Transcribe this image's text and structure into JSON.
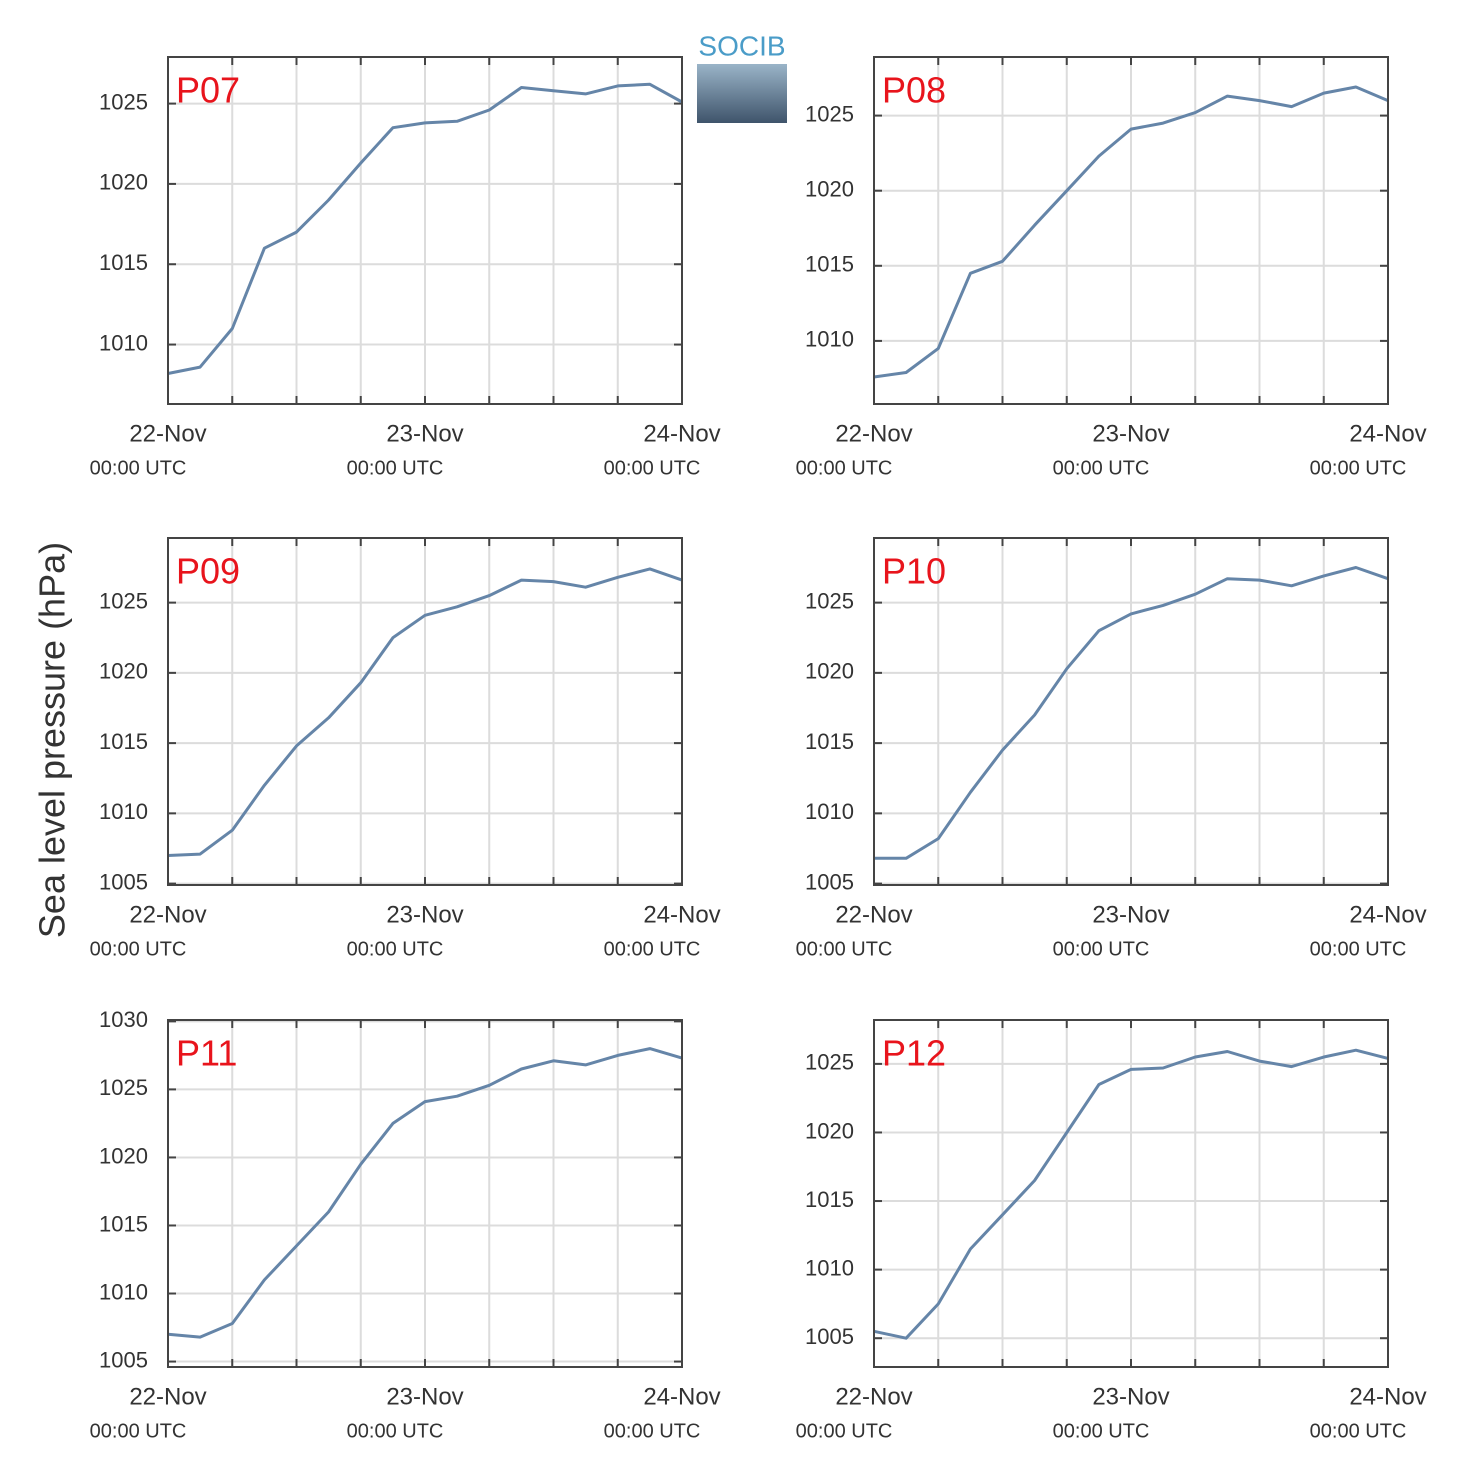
{
  "logo": "SOCIB",
  "ylabel": "Sea level pressure (hPa)",
  "chart_data": [
    {
      "type": "line",
      "title": "P07",
      "color": "#6585a8",
      "grid": true,
      "x": [
        0,
        3,
        6,
        9,
        12,
        15,
        18,
        21,
        24,
        27,
        30,
        33,
        36,
        39,
        42,
        45,
        48
      ],
      "values": [
        1008.2,
        1008.6,
        1011,
        1016,
        1017,
        1019,
        1021.3,
        1023.5,
        1023.8,
        1023.9,
        1024.6,
        1026,
        1025.8,
        1025.6,
        1026.1,
        1026.2,
        1025.1
      ],
      "xlim": [
        0,
        48
      ],
      "xticks": [
        {
          "value": 0,
          "label": "22-Nov",
          "sublabel": "00:00 UTC"
        },
        {
          "value": 6,
          "label": null
        },
        {
          "value": 12,
          "label": null
        },
        {
          "value": 18,
          "label": null
        },
        {
          "value": 24,
          "label": "23-Nov",
          "sublabel": "00:00 UTC"
        },
        {
          "value": 30,
          "label": null
        },
        {
          "value": 36,
          "label": null
        },
        {
          "value": 42,
          "label": null
        },
        {
          "value": 48,
          "label": "24-Nov",
          "sublabel": "00:00 UTC"
        }
      ],
      "ylim": [
        1006.3,
        1027.9
      ],
      "yticks": [
        1010,
        1015,
        1020,
        1025
      ]
    },
    {
      "type": "line",
      "title": "P08",
      "color": "#6585a8",
      "grid": true,
      "x": [
        0,
        3,
        6,
        9,
        12,
        15,
        18,
        21,
        24,
        27,
        30,
        33,
        36,
        39,
        42,
        45,
        48
      ],
      "values": [
        1007.6,
        1007.9,
        1009.5,
        1014.5,
        1015.3,
        1017.7,
        1020,
        1022.3,
        1024.1,
        1024.5,
        1025.2,
        1026.3,
        1026,
        1025.6,
        1026.5,
        1026.9,
        1026
      ],
      "xlim": [
        0,
        48
      ],
      "xticks": [
        {
          "value": 0,
          "label": "22-Nov",
          "sublabel": "00:00 UTC"
        },
        {
          "value": 6,
          "label": null
        },
        {
          "value": 12,
          "label": null
        },
        {
          "value": 18,
          "label": null
        },
        {
          "value": 24,
          "label": "23-Nov",
          "sublabel": "00:00 UTC"
        },
        {
          "value": 30,
          "label": null
        },
        {
          "value": 36,
          "label": null
        },
        {
          "value": 42,
          "label": null
        },
        {
          "value": 48,
          "label": "24-Nov",
          "sublabel": "00:00 UTC"
        }
      ],
      "ylim": [
        1005.8,
        1028.9
      ],
      "yticks": [
        1010,
        1015,
        1020,
        1025
      ]
    },
    {
      "type": "line",
      "title": "P09",
      "color": "#6585a8",
      "grid": true,
      "x": [
        0,
        3,
        6,
        9,
        12,
        15,
        18,
        21,
        24,
        27,
        30,
        33,
        36,
        39,
        42,
        45,
        48
      ],
      "values": [
        1007,
        1007.1,
        1008.8,
        1012,
        1014.8,
        1016.8,
        1019.3,
        1022.5,
        1024.1,
        1024.7,
        1025.5,
        1026.6,
        1026.5,
        1026.1,
        1026.8,
        1027.4,
        1026.6
      ],
      "xlim": [
        0,
        48
      ],
      "xticks": [
        {
          "value": 0,
          "label": "22-Nov",
          "sublabel": "00:00 UTC"
        },
        {
          "value": 6,
          "label": null
        },
        {
          "value": 12,
          "label": null
        },
        {
          "value": 18,
          "label": null
        },
        {
          "value": 24,
          "label": "23-Nov",
          "sublabel": "00:00 UTC"
        },
        {
          "value": 30,
          "label": null
        },
        {
          "value": 36,
          "label": null
        },
        {
          "value": 42,
          "label": null
        },
        {
          "value": 48,
          "label": "24-Nov",
          "sublabel": "00:00 UTC"
        }
      ],
      "ylim": [
        1004.9,
        1029.6
      ],
      "yticks": [
        1005,
        1010,
        1015,
        1020,
        1025
      ]
    },
    {
      "type": "line",
      "title": "P10",
      "color": "#6585a8",
      "grid": true,
      "x": [
        0,
        3,
        6,
        9,
        12,
        15,
        18,
        21,
        24,
        27,
        30,
        33,
        36,
        39,
        42,
        45,
        48
      ],
      "values": [
        1006.8,
        1006.8,
        1008.2,
        1011.5,
        1014.5,
        1017,
        1020.3,
        1023,
        1024.2,
        1024.8,
        1025.6,
        1026.7,
        1026.6,
        1026.2,
        1026.9,
        1027.5,
        1026.7
      ],
      "xlim": [
        0,
        48
      ],
      "xticks": [
        {
          "value": 0,
          "label": "22-Nov",
          "sublabel": "00:00 UTC"
        },
        {
          "value": 6,
          "label": null
        },
        {
          "value": 12,
          "label": null
        },
        {
          "value": 18,
          "label": null
        },
        {
          "value": 24,
          "label": "23-Nov",
          "sublabel": "00:00 UTC"
        },
        {
          "value": 30,
          "label": null
        },
        {
          "value": 36,
          "label": null
        },
        {
          "value": 42,
          "label": null
        },
        {
          "value": 48,
          "label": "24-Nov",
          "sublabel": "00:00 UTC"
        }
      ],
      "ylim": [
        1004.9,
        1029.6
      ],
      "yticks": [
        1005,
        1010,
        1015,
        1020,
        1025
      ]
    },
    {
      "type": "line",
      "title": "P11",
      "color": "#6585a8",
      "grid": true,
      "x": [
        0,
        3,
        6,
        9,
        12,
        15,
        18,
        21,
        24,
        27,
        30,
        33,
        36,
        39,
        42,
        45,
        48
      ],
      "values": [
        1007,
        1006.8,
        1007.8,
        1011,
        1013.5,
        1016,
        1019.5,
        1022.5,
        1024.1,
        1024.5,
        1025.3,
        1026.5,
        1027.1,
        1026.8,
        1027.5,
        1028,
        1027.3
      ],
      "xlim": [
        0,
        48
      ],
      "xticks": [
        {
          "value": 0,
          "label": "22-Nov",
          "sublabel": "00:00 UTC"
        },
        {
          "value": 6,
          "label": null
        },
        {
          "value": 12,
          "label": null
        },
        {
          "value": 18,
          "label": null
        },
        {
          "value": 24,
          "label": "23-Nov",
          "sublabel": "00:00 UTC"
        },
        {
          "value": 30,
          "label": null
        },
        {
          "value": 36,
          "label": null
        },
        {
          "value": 42,
          "label": null
        },
        {
          "value": 48,
          "label": "24-Nov",
          "sublabel": "00:00 UTC"
        }
      ],
      "ylim": [
        1004.6,
        1030.1
      ],
      "yticks": [
        1005,
        1010,
        1015,
        1020,
        1025,
        1030
      ]
    },
    {
      "type": "line",
      "title": "P12",
      "color": "#6585a8",
      "grid": true,
      "x": [
        0,
        3,
        6,
        9,
        12,
        15,
        18,
        21,
        24,
        27,
        30,
        33,
        36,
        39,
        42,
        45,
        48
      ],
      "values": [
        1005.5,
        1005,
        1007.5,
        1011.5,
        1014,
        1016.5,
        1020,
        1023.5,
        1024.6,
        1024.7,
        1025.5,
        1025.9,
        1025.2,
        1024.8,
        1025.5,
        1026,
        1025.4
      ],
      "xlim": [
        0,
        48
      ],
      "xticks": [
        {
          "value": 0,
          "label": "22-Nov",
          "sublabel": "00:00 UTC"
        },
        {
          "value": 6,
          "label": null
        },
        {
          "value": 12,
          "label": null
        },
        {
          "value": 18,
          "label": null
        },
        {
          "value": 24,
          "label": "23-Nov",
          "sublabel": "00:00 UTC"
        },
        {
          "value": 30,
          "label": null
        },
        {
          "value": 36,
          "label": null
        },
        {
          "value": 42,
          "label": null
        },
        {
          "value": 48,
          "label": "24-Nov",
          "sublabel": "00:00 UTC"
        }
      ],
      "ylim": [
        1002.9,
        1028.2
      ],
      "yticks": [
        1005,
        1010,
        1015,
        1020,
        1025
      ]
    }
  ]
}
